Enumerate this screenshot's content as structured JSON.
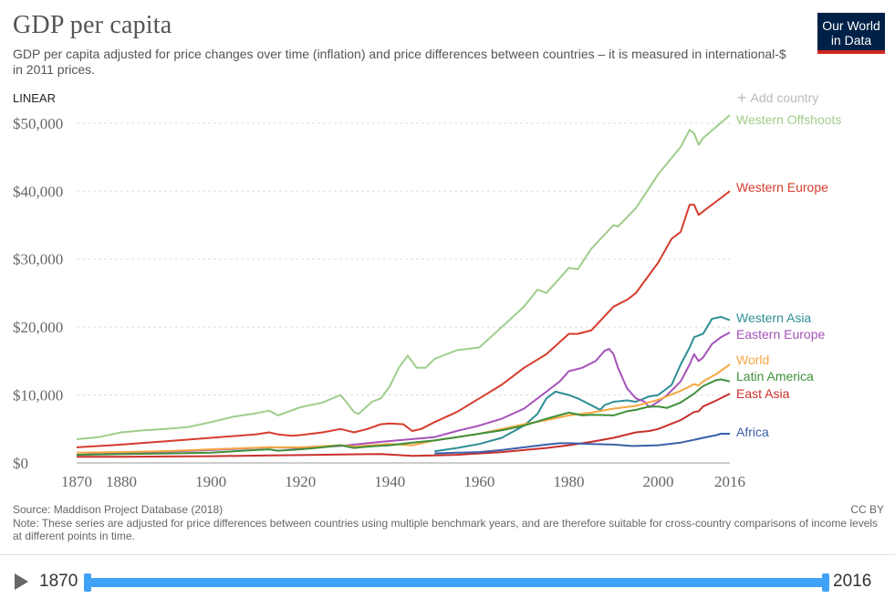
{
  "header": {
    "title": "GDP per capita",
    "subtitle": "GDP per capita adjusted for price changes over time (inflation) and price differences between countries – it is measured in international-$ in 2011 prices.",
    "logo_line1": "Our World",
    "logo_line2": "in Data",
    "scale_label": "LINEAR",
    "add_country_label": "Add country"
  },
  "footer": {
    "source": "Source: Maddison Project Database (2018)",
    "note": "Note: These series are adjusted for price differences between countries using multiple benchmark years, and are therefore suitable for cross-country comparisons of income levels at different points in time.",
    "license": "CC BY"
  },
  "timeline": {
    "start_label": "1870",
    "end_label": "2016"
  },
  "colors": {
    "grid": "#dddddd",
    "axis_text": "#666666"
  },
  "chart_data": {
    "type": "line",
    "title": "GDP per capita",
    "ylim": [
      0,
      52000
    ],
    "xlim": [
      1870,
      2016
    ],
    "y_ticks": [
      {
        "value": 0,
        "label": "$0"
      },
      {
        "value": 10000,
        "label": "$10,000"
      },
      {
        "value": 20000,
        "label": "$20,000"
      },
      {
        "value": 30000,
        "label": "$30,000"
      },
      {
        "value": 40000,
        "label": "$40,000"
      },
      {
        "value": 50000,
        "label": "$50,000"
      }
    ],
    "x_ticks": [
      {
        "value": 1870,
        "label": "1870"
      },
      {
        "value": 1880,
        "label": "1880"
      },
      {
        "value": 1900,
        "label": "1900"
      },
      {
        "value": 1920,
        "label": "1920"
      },
      {
        "value": 1940,
        "label": "1940"
      },
      {
        "value": 1960,
        "label": "1960"
      },
      {
        "value": 1980,
        "label": "1980"
      },
      {
        "value": 2000,
        "label": "2000"
      },
      {
        "value": 2016,
        "label": "2016"
      }
    ],
    "grid": true,
    "legend": "right, end-of-line labels",
    "series": [
      {
        "name": "Western Offshoots",
        "color": "#9fcd8b",
        "points": [
          [
            1870,
            3500
          ],
          [
            1875,
            3800
          ],
          [
            1880,
            4500
          ],
          [
            1885,
            4800
          ],
          [
            1890,
            5000
          ],
          [
            1895,
            5300
          ],
          [
            1900,
            6000
          ],
          [
            1905,
            6800
          ],
          [
            1910,
            7300
          ],
          [
            1913,
            7700
          ],
          [
            1915,
            7000
          ],
          [
            1920,
            8200
          ],
          [
            1925,
            8900
          ],
          [
            1929,
            10000
          ],
          [
            1930,
            9200
          ],
          [
            1932,
            7500
          ],
          [
            1933,
            7200
          ],
          [
            1936,
            9000
          ],
          [
            1938,
            9500
          ],
          [
            1940,
            11300
          ],
          [
            1942,
            14000
          ],
          [
            1944,
            15800
          ],
          [
            1946,
            14000
          ],
          [
            1948,
            14000
          ],
          [
            1950,
            15300
          ],
          [
            1955,
            16600
          ],
          [
            1960,
            17000
          ],
          [
            1965,
            20000
          ],
          [
            1970,
            23000
          ],
          [
            1973,
            25500
          ],
          [
            1975,
            25000
          ],
          [
            1980,
            28700
          ],
          [
            1982,
            28500
          ],
          [
            1985,
            31500
          ],
          [
            1990,
            35000
          ],
          [
            1991,
            34800
          ],
          [
            1995,
            37500
          ],
          [
            2000,
            42500
          ],
          [
            2005,
            46500
          ],
          [
            2007,
            49000
          ],
          [
            2008,
            48500
          ],
          [
            2009,
            46800
          ],
          [
            2010,
            47800
          ],
          [
            2013,
            49500
          ],
          [
            2016,
            51200
          ]
        ]
      },
      {
        "name": "Western Europe",
        "color": "#d73c2e",
        "points": [
          [
            1870,
            2300
          ],
          [
            1880,
            2700
          ],
          [
            1890,
            3200
          ],
          [
            1900,
            3700
          ],
          [
            1910,
            4200
          ],
          [
            1913,
            4500
          ],
          [
            1915,
            4200
          ],
          [
            1918,
            4000
          ],
          [
            1920,
            4100
          ],
          [
            1925,
            4500
          ],
          [
            1929,
            5000
          ],
          [
            1932,
            4500
          ],
          [
            1935,
            5000
          ],
          [
            1938,
            5700
          ],
          [
            1940,
            5800
          ],
          [
            1943,
            5700
          ],
          [
            1945,
            4700
          ],
          [
            1947,
            5000
          ],
          [
            1950,
            6000
          ],
          [
            1955,
            7500
          ],
          [
            1960,
            9500
          ],
          [
            1965,
            11500
          ],
          [
            1970,
            14000
          ],
          [
            1975,
            16000
          ],
          [
            1980,
            19000
          ],
          [
            1982,
            19000
          ],
          [
            1985,
            19500
          ],
          [
            1990,
            23000
          ],
          [
            1993,
            24000
          ],
          [
            1995,
            25000
          ],
          [
            2000,
            29500
          ],
          [
            2003,
            33000
          ],
          [
            2005,
            34000
          ],
          [
            2007,
            38000
          ],
          [
            2008,
            38000
          ],
          [
            2009,
            36500
          ],
          [
            2010,
            37000
          ],
          [
            2013,
            38500
          ],
          [
            2016,
            40000
          ]
        ]
      },
      {
        "name": "Western Asia",
        "color": "#2f8e96",
        "points": [
          [
            1950,
            1700
          ],
          [
            1955,
            2200
          ],
          [
            1960,
            2800
          ],
          [
            1965,
            3700
          ],
          [
            1970,
            5500
          ],
          [
            1973,
            7200
          ],
          [
            1975,
            9500
          ],
          [
            1977,
            10500
          ],
          [
            1980,
            10000
          ],
          [
            1982,
            9500
          ],
          [
            1985,
            8500
          ],
          [
            1987,
            7800
          ],
          [
            1988,
            8500
          ],
          [
            1990,
            9000
          ],
          [
            1993,
            9200
          ],
          [
            1995,
            9000
          ],
          [
            1998,
            9800
          ],
          [
            2000,
            10000
          ],
          [
            2003,
            11500
          ],
          [
            2005,
            14500
          ],
          [
            2007,
            17000
          ],
          [
            2008,
            18500
          ],
          [
            2010,
            19000
          ],
          [
            2012,
            21200
          ],
          [
            2014,
            21500
          ],
          [
            2016,
            21000
          ]
        ]
      },
      {
        "name": "Eastern Europe",
        "color": "#a652ba",
        "points": [
          [
            1870,
            1200
          ],
          [
            1900,
            1900
          ],
          [
            1913,
            2300
          ],
          [
            1920,
            2200
          ],
          [
            1929,
            2500
          ],
          [
            1938,
            3100
          ],
          [
            1950,
            3800
          ],
          [
            1955,
            4700
          ],
          [
            1960,
            5500
          ],
          [
            1965,
            6500
          ],
          [
            1970,
            8000
          ],
          [
            1975,
            10500
          ],
          [
            1978,
            12000
          ],
          [
            1980,
            13500
          ],
          [
            1983,
            14000
          ],
          [
            1986,
            15000
          ],
          [
            1988,
            16500
          ],
          [
            1989,
            16800
          ],
          [
            1990,
            16000
          ],
          [
            1991,
            14000
          ],
          [
            1993,
            11000
          ],
          [
            1995,
            9500
          ],
          [
            1997,
            9000
          ],
          [
            1998,
            8200
          ],
          [
            2000,
            9000
          ],
          [
            2002,
            10000
          ],
          [
            2005,
            12000
          ],
          [
            2007,
            14500
          ],
          [
            2008,
            16000
          ],
          [
            2009,
            15000
          ],
          [
            2010,
            15500
          ],
          [
            2012,
            17500
          ],
          [
            2014,
            18500
          ],
          [
            2016,
            19200
          ]
        ]
      },
      {
        "name": "World",
        "color": "#f5a742",
        "points": [
          [
            1870,
            1500
          ],
          [
            1880,
            1600
          ],
          [
            1890,
            1750
          ],
          [
            1900,
            2000
          ],
          [
            1913,
            2300
          ],
          [
            1920,
            2300
          ],
          [
            1929,
            2600
          ],
          [
            1932,
            2400
          ],
          [
            1938,
            2700
          ],
          [
            1940,
            2800
          ],
          [
            1945,
            2600
          ],
          [
            1950,
            3300
          ],
          [
            1955,
            3800
          ],
          [
            1960,
            4300
          ],
          [
            1965,
            5000
          ],
          [
            1970,
            5700
          ],
          [
            1975,
            6300
          ],
          [
            1980,
            7000
          ],
          [
            1985,
            7400
          ],
          [
            1990,
            8000
          ],
          [
            1995,
            8400
          ],
          [
            2000,
            9300
          ],
          [
            2005,
            10600
          ],
          [
            2008,
            11600
          ],
          [
            2009,
            11400
          ],
          [
            2010,
            12000
          ],
          [
            2013,
            13100
          ],
          [
            2016,
            14500
          ]
        ]
      },
      {
        "name": "Latin America",
        "color": "#3d8f3a",
        "points": [
          [
            1870,
            1200
          ],
          [
            1880,
            1300
          ],
          [
            1890,
            1400
          ],
          [
            1900,
            1500
          ],
          [
            1905,
            1700
          ],
          [
            1910,
            1900
          ],
          [
            1913,
            2000
          ],
          [
            1915,
            1800
          ],
          [
            1920,
            2000
          ],
          [
            1925,
            2300
          ],
          [
            1929,
            2600
          ],
          [
            1932,
            2200
          ],
          [
            1935,
            2400
          ],
          [
            1940,
            2600
          ],
          [
            1945,
            3000
          ],
          [
            1950,
            3300
          ],
          [
            1955,
            3800
          ],
          [
            1960,
            4300
          ],
          [
            1965,
            4800
          ],
          [
            1970,
            5500
          ],
          [
            1975,
            6500
          ],
          [
            1980,
            7400
          ],
          [
            1983,
            7000
          ],
          [
            1985,
            7100
          ],
          [
            1990,
            7000
          ],
          [
            1993,
            7600
          ],
          [
            1995,
            7800
          ],
          [
            1998,
            8300
          ],
          [
            2000,
            8300
          ],
          [
            2002,
            8100
          ],
          [
            2005,
            8900
          ],
          [
            2008,
            10200
          ],
          [
            2010,
            11300
          ],
          [
            2013,
            12200
          ],
          [
            2014,
            12300
          ],
          [
            2016,
            12000
          ]
        ]
      },
      {
        "name": "East Asia",
        "color": "#c9302c",
        "points": [
          [
            1870,
            900
          ],
          [
            1880,
            920
          ],
          [
            1890,
            950
          ],
          [
            1900,
            1000
          ],
          [
            1913,
            1100
          ],
          [
            1920,
            1150
          ],
          [
            1929,
            1250
          ],
          [
            1938,
            1300
          ],
          [
            1945,
            1050
          ],
          [
            1950,
            1100
          ],
          [
            1955,
            1200
          ],
          [
            1960,
            1400
          ],
          [
            1965,
            1600
          ],
          [
            1970,
            1900
          ],
          [
            1975,
            2200
          ],
          [
            1980,
            2600
          ],
          [
            1985,
            3100
          ],
          [
            1990,
            3700
          ],
          [
            1995,
            4500
          ],
          [
            1998,
            4700
          ],
          [
            2000,
            5000
          ],
          [
            2005,
            6300
          ],
          [
            2008,
            7500
          ],
          [
            2009,
            7600
          ],
          [
            2010,
            8300
          ],
          [
            2013,
            9200
          ],
          [
            2016,
            10200
          ]
        ]
      },
      {
        "name": "Africa",
        "color": "#3b5fa8",
        "points": [
          [
            1950,
            1400
          ],
          [
            1955,
            1500
          ],
          [
            1960,
            1600
          ],
          [
            1965,
            1900
          ],
          [
            1970,
            2300
          ],
          [
            1975,
            2700
          ],
          [
            1978,
            2900
          ],
          [
            1980,
            2900
          ],
          [
            1985,
            2800
          ],
          [
            1990,
            2700
          ],
          [
            1994,
            2500
          ],
          [
            1995,
            2500
          ],
          [
            2000,
            2600
          ],
          [
            2005,
            3000
          ],
          [
            2008,
            3400
          ],
          [
            2010,
            3700
          ],
          [
            2013,
            4100
          ],
          [
            2014,
            4300
          ],
          [
            2016,
            4300
          ]
        ]
      }
    ]
  }
}
